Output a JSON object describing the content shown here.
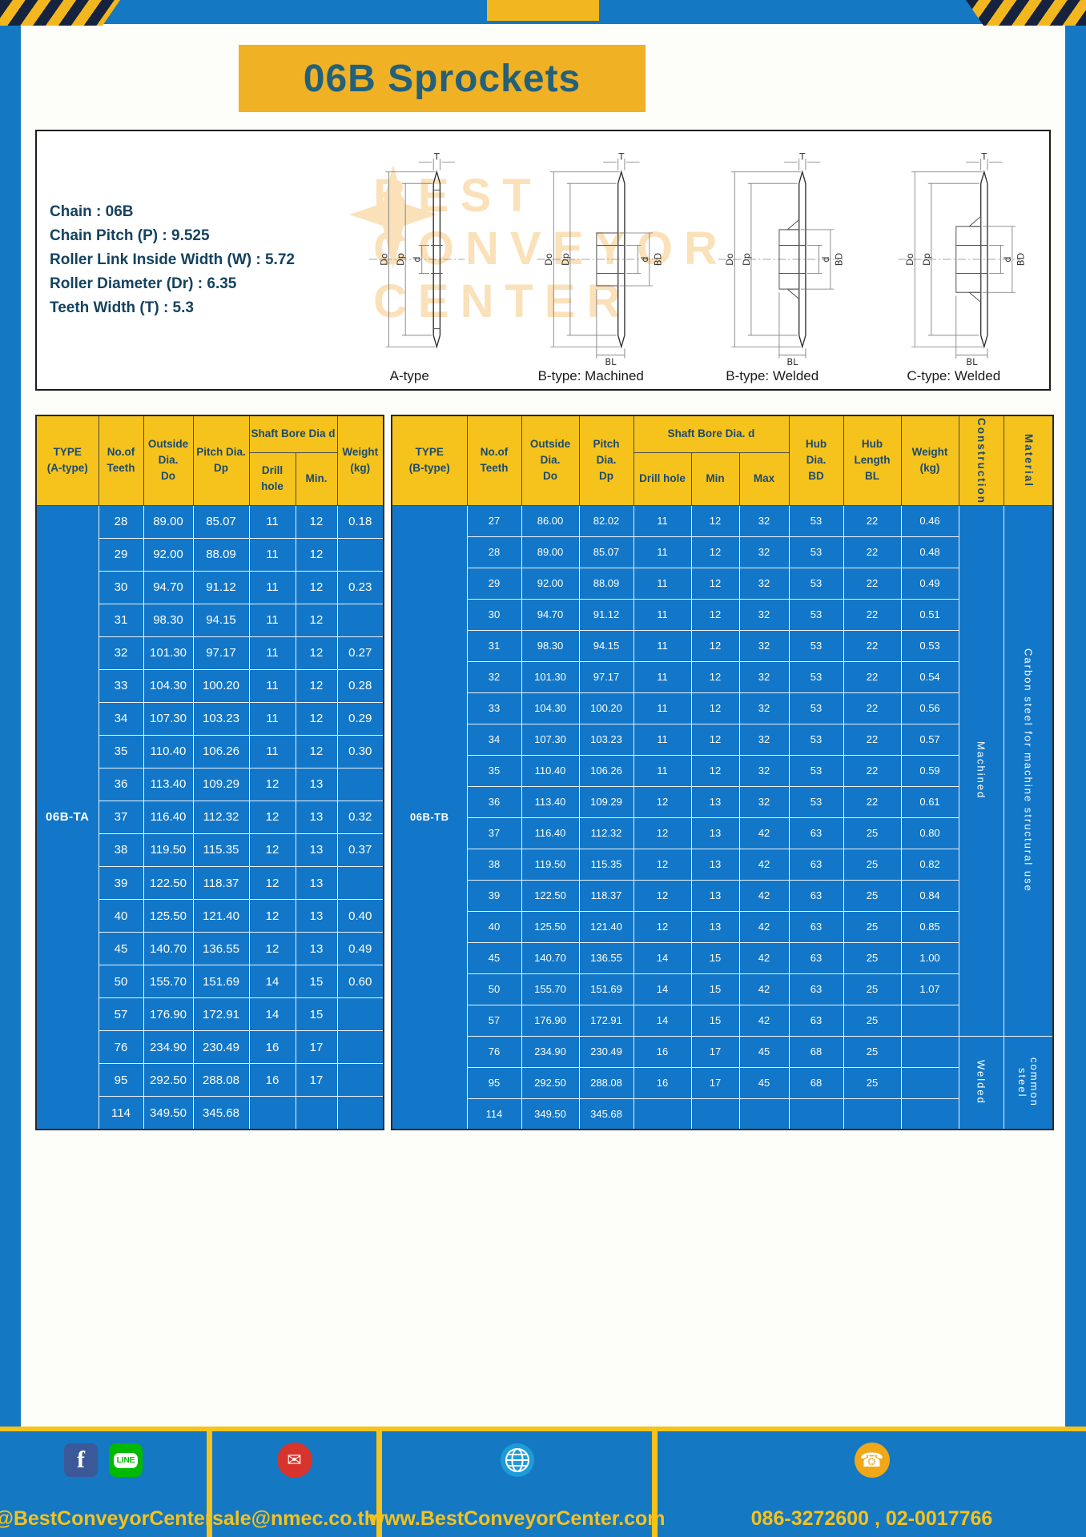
{
  "page_title": "06B Sprockets",
  "specs": [
    "Chain : 06B",
    "Chain Pitch (P) : 9.525",
    "Roller Link Inside Width (W) : 5.72",
    "Roller Diameter (Dr) : 6.35",
    "Teeth Width (T) : 5.3"
  ],
  "colors": {
    "frame_blue": "#1478c3",
    "header_yellow": "#f6c21c",
    "table_blue": "#1277c8",
    "title_teal": "#23607a"
  },
  "diagram": {
    "captions": [
      "A-type",
      "B-type: Machined",
      "B-type: Welded",
      "C-type: Welded"
    ],
    "dim_labels": {
      "T": "T",
      "Do": "Do",
      "Dp": "Dp",
      "d": "d",
      "BD": "BD",
      "BL": "BL"
    },
    "watermark_lines": [
      "BEST",
      "CONVEYOR",
      "CENTER"
    ]
  },
  "table_a": {
    "type_value": "06B-TA",
    "headers": {
      "type": "TYPE\n(A-type)",
      "teeth": "No.of\nTeeth",
      "outside": "Outside\nDia.\nDo",
      "pitch": "Pitch Dia.\nDp",
      "shaft_bore": "Shaft Bore Dia d",
      "drill_hole": "Drill hole",
      "min": "Min.",
      "weight": "Weight\n(kg)"
    },
    "rows": [
      [
        "28",
        "89.00",
        "85.07",
        "11",
        "12",
        "0.18"
      ],
      [
        "29",
        "92.00",
        "88.09",
        "11",
        "12",
        ""
      ],
      [
        "30",
        "94.70",
        "91.12",
        "11",
        "12",
        "0.23"
      ],
      [
        "31",
        "98.30",
        "94.15",
        "11",
        "12",
        ""
      ],
      [
        "32",
        "101.30",
        "97.17",
        "11",
        "12",
        "0.27"
      ],
      [
        "33",
        "104.30",
        "100.20",
        "11",
        "12",
        "0.28"
      ],
      [
        "34",
        "107.30",
        "103.23",
        "11",
        "12",
        "0.29"
      ],
      [
        "35",
        "110.40",
        "106.26",
        "11",
        "12",
        "0.30"
      ],
      [
        "36",
        "113.40",
        "109.29",
        "12",
        "13",
        ""
      ],
      [
        "37",
        "116.40",
        "112.32",
        "12",
        "13",
        "0.32"
      ],
      [
        "38",
        "119.50",
        "115.35",
        "12",
        "13",
        "0.37"
      ],
      [
        "39",
        "122.50",
        "118.37",
        "12",
        "13",
        ""
      ],
      [
        "40",
        "125.50",
        "121.40",
        "12",
        "13",
        "0.40"
      ],
      [
        "45",
        "140.70",
        "136.55",
        "12",
        "13",
        "0.49"
      ],
      [
        "50",
        "155.70",
        "151.69",
        "14",
        "15",
        "0.60"
      ],
      [
        "57",
        "176.90",
        "172.91",
        "14",
        "15",
        ""
      ],
      [
        "76",
        "234.90",
        "230.49",
        "16",
        "17",
        ""
      ],
      [
        "95",
        "292.50",
        "288.08",
        "16",
        "17",
        ""
      ],
      [
        "114",
        "349.50",
        "345.68",
        "",
        "",
        ""
      ]
    ]
  },
  "table_b": {
    "type_value": "06B-TB",
    "headers": {
      "type": "TYPE\n(B-type)",
      "teeth": "No.of\nTeeth",
      "outside": "Outside\nDia.\nDo",
      "pitch": "Pitch\nDia.\nDp",
      "shaft_bore": "Shaft Bore Dia. d",
      "drill_hole": "Drill hole",
      "min": "Min",
      "max": "Max",
      "hub_dia": "Hub\nDia.\nBD",
      "hub_len": "Hub\nLength\nBL",
      "weight": "Weight\n(kg)",
      "construction": "Construction",
      "material": "Material"
    },
    "rows": [
      [
        "27",
        "86.00",
        "82.02",
        "11",
        "12",
        "32",
        "53",
        "22",
        "0.46"
      ],
      [
        "28",
        "89.00",
        "85.07",
        "11",
        "12",
        "32",
        "53",
        "22",
        "0.48"
      ],
      [
        "29",
        "92.00",
        "88.09",
        "11",
        "12",
        "32",
        "53",
        "22",
        "0.49"
      ],
      [
        "30",
        "94.70",
        "91.12",
        "11",
        "12",
        "32",
        "53",
        "22",
        "0.51"
      ],
      [
        "31",
        "98.30",
        "94.15",
        "11",
        "12",
        "32",
        "53",
        "22",
        "0.53"
      ],
      [
        "32",
        "101.30",
        "97.17",
        "11",
        "12",
        "32",
        "53",
        "22",
        "0.54"
      ],
      [
        "33",
        "104.30",
        "100.20",
        "11",
        "12",
        "32",
        "53",
        "22",
        "0.56"
      ],
      [
        "34",
        "107.30",
        "103.23",
        "11",
        "12",
        "32",
        "53",
        "22",
        "0.57"
      ],
      [
        "35",
        "110.40",
        "106.26",
        "11",
        "12",
        "32",
        "53",
        "22",
        "0.59"
      ],
      [
        "36",
        "113.40",
        "109.29",
        "12",
        "13",
        "32",
        "53",
        "22",
        "0.61"
      ],
      [
        "37",
        "116.40",
        "112.32",
        "12",
        "13",
        "42",
        "63",
        "25",
        "0.80"
      ],
      [
        "38",
        "119.50",
        "115.35",
        "12",
        "13",
        "42",
        "63",
        "25",
        "0.82"
      ],
      [
        "39",
        "122.50",
        "118.37",
        "12",
        "13",
        "42",
        "63",
        "25",
        "0.84"
      ],
      [
        "40",
        "125.50",
        "121.40",
        "12",
        "13",
        "42",
        "63",
        "25",
        "0.85"
      ],
      [
        "45",
        "140.70",
        "136.55",
        "14",
        "15",
        "42",
        "63",
        "25",
        "1.00"
      ],
      [
        "50",
        "155.70",
        "151.69",
        "14",
        "15",
        "42",
        "63",
        "25",
        "1.07"
      ],
      [
        "57",
        "176.90",
        "172.91",
        "14",
        "15",
        "42",
        "63",
        "25",
        ""
      ],
      [
        "76",
        "234.90",
        "230.49",
        "16",
        "17",
        "45",
        "68",
        "25",
        ""
      ],
      [
        "95",
        "292.50",
        "288.08",
        "16",
        "17",
        "45",
        "68",
        "25",
        ""
      ],
      [
        "114",
        "349.50",
        "345.68",
        "",
        "",
        "",
        "",
        "",
        ""
      ]
    ],
    "construction": [
      {
        "label": "Machined",
        "span": 17
      },
      {
        "label": "Welded",
        "span": 3
      }
    ],
    "material": [
      {
        "label": "Carbon steel for machine structural use",
        "span": 17
      },
      {
        "label": "common steel",
        "span": 3
      }
    ]
  },
  "footer": {
    "sections": [
      {
        "text": "@BestConveyorCenter"
      },
      {
        "text": "sale@nmec.co.th"
      },
      {
        "text": "www.BestConveyorCenter.com"
      },
      {
        "text": "086-3272600 , 02-0017766"
      }
    ],
    "glyphs": {
      "facebook": "f",
      "line": "LINE",
      "email": "✉",
      "phone": "☎"
    }
  }
}
